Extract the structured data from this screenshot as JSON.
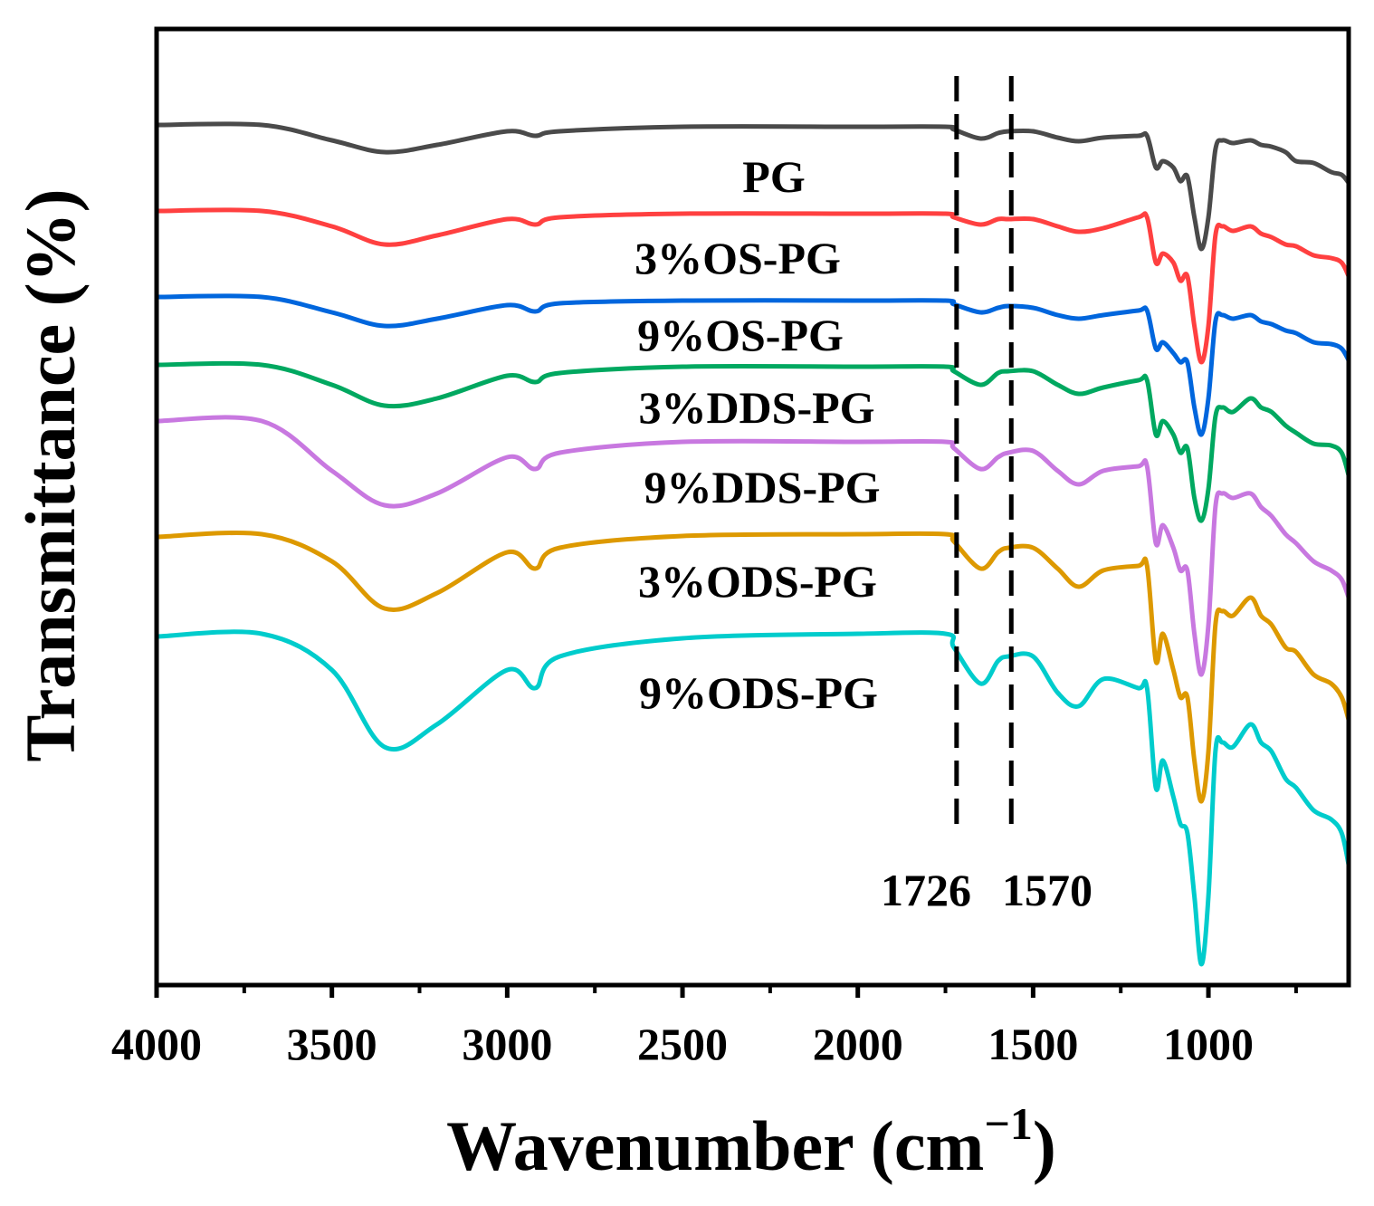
{
  "chart_data": {
    "type": "line",
    "title": "",
    "xlabel": "Wavenumber (cm",
    "xlabel_sup": "−1",
    "xlabel_close": ")",
    "ylabel": "Transmittance (%)",
    "xlim": [
      4000,
      600
    ],
    "ylim": [
      0,
      105.6
    ],
    "grid": false,
    "x_ticks": [
      4000,
      3500,
      3000,
      2500,
      2000,
      1500,
      1000
    ],
    "x_tick_labels": [
      "4000",
      "3500",
      "3000",
      "2500",
      "2000",
      "1500",
      "1000"
    ],
    "x_minor_ticks": [
      3750,
      3250,
      2750,
      2250,
      1750,
      1250,
      750
    ],
    "reference_lines": [
      {
        "x": 1726,
        "label": "1726"
      },
      {
        "x": 1570,
        "label": "1570"
      }
    ],
    "x": [
      4000,
      3700,
      3500,
      3350,
      3200,
      3000,
      2920,
      2850,
      2500,
      2000,
      1750,
      1726,
      1650,
      1600,
      1570,
      1500,
      1430,
      1370,
      1300,
      1200,
      1175,
      1150,
      1130,
      1100,
      1080,
      1060,
      1040,
      1020,
      1000,
      980,
      960,
      930,
      880,
      850,
      820,
      780,
      750,
      700,
      650,
      620,
      600
    ],
    "series": [
      {
        "name": "PG",
        "color": "#4a4a4a",
        "values": [
          95.0,
          95.0,
          93.3,
          92.0,
          92.8,
          94.3,
          93.8,
          94.3,
          94.8,
          94.8,
          94.8,
          94.5,
          93.5,
          94.1,
          94.3,
          94.3,
          93.6,
          93.2,
          93.6,
          93.8,
          93.8,
          90.3,
          91.0,
          90.3,
          88.8,
          89.3,
          84.8,
          81.3,
          84.8,
          92.3,
          93.3,
          93.0,
          93.3,
          92.8,
          92.6,
          92.0,
          91.0,
          90.8,
          89.8,
          89.5,
          88.6
        ]
      },
      {
        "name": "3%OS-PG",
        "color": "#ff4040",
        "values": [
          85.5,
          85.5,
          83.8,
          81.8,
          82.8,
          84.6,
          84.0,
          84.8,
          85.2,
          85.2,
          85.2,
          84.8,
          84.0,
          84.6,
          84.6,
          84.6,
          83.8,
          83.2,
          83.6,
          84.8,
          84.8,
          79.8,
          80.8,
          79.8,
          77.8,
          78.3,
          72.8,
          68.8,
          72.8,
          82.8,
          83.8,
          83.3,
          83.8,
          83.0,
          82.6,
          81.8,
          81.6,
          80.6,
          80.3,
          79.8,
          78.3
        ]
      },
      {
        "name": "9%OS-PG",
        "color": "#0066dd",
        "values": [
          76.0,
          76.0,
          74.3,
          72.8,
          73.6,
          75.1,
          74.4,
          75.3,
          75.6,
          75.6,
          75.6,
          75.2,
          74.3,
          74.8,
          75.0,
          74.8,
          74.0,
          73.6,
          74.0,
          74.5,
          74.5,
          70.3,
          71.0,
          69.8,
          68.8,
          68.8,
          63.8,
          60.8,
          64.8,
          73.3,
          74.0,
          73.6,
          74.0,
          73.3,
          73.0,
          72.3,
          72.0,
          71.0,
          70.8,
          70.3,
          69.0
        ]
      },
      {
        "name": "3%DDS-PG",
        "color": "#00a860",
        "values": [
          68.5,
          68.5,
          66.3,
          64.0,
          64.8,
          67.3,
          66.6,
          67.6,
          68.3,
          68.3,
          68.3,
          67.8,
          66.3,
          67.6,
          67.8,
          67.8,
          66.3,
          65.3,
          66.0,
          66.8,
          66.8,
          60.8,
          62.3,
          60.8,
          58.8,
          59.3,
          53.8,
          51.3,
          54.8,
          62.8,
          63.8,
          63.3,
          64.8,
          63.8,
          63.3,
          61.8,
          61.0,
          59.8,
          59.6,
          58.8,
          56.3
        ]
      },
      {
        "name": "9%DDS-PG",
        "color": "#c878e0",
        "values": [
          62.3,
          62.3,
          56.8,
          53.0,
          54.3,
          58.3,
          57.0,
          58.8,
          60.0,
          60.0,
          60.0,
          59.3,
          57.0,
          58.3,
          58.8,
          59.0,
          56.8,
          55.3,
          56.8,
          57.3,
          57.3,
          48.8,
          50.8,
          48.3,
          45.8,
          45.8,
          38.8,
          34.3,
          39.8,
          52.8,
          54.3,
          53.8,
          54.3,
          52.8,
          51.8,
          49.8,
          48.8,
          46.8,
          45.8,
          44.8,
          42.8
        ]
      },
      {
        "name": "3%ODS-PG",
        "color": "#dd9900",
        "values": [
          49.5,
          49.8,
          46.8,
          41.6,
          43.3,
          47.8,
          46.0,
          48.3,
          49.6,
          49.8,
          49.8,
          49.0,
          46.0,
          47.8,
          48.3,
          48.3,
          46.0,
          44.0,
          45.8,
          46.3,
          46.3,
          35.8,
          38.8,
          34.8,
          31.8,
          31.8,
          24.8,
          20.3,
          25.8,
          39.8,
          41.3,
          40.8,
          42.8,
          40.8,
          39.8,
          37.3,
          36.8,
          34.3,
          33.3,
          31.8,
          29.3
        ]
      },
      {
        "name": "9%ODS-PG",
        "color": "#00cccc",
        "values": [
          38.5,
          38.8,
          34.8,
          26.3,
          28.8,
          34.8,
          32.8,
          36.3,
          38.3,
          38.8,
          38.8,
          37.3,
          33.3,
          35.8,
          36.3,
          36.3,
          32.3,
          30.8,
          33.8,
          32.8,
          32.8,
          21.8,
          24.8,
          20.8,
          17.8,
          16.8,
          9.8,
          2.3,
          9.8,
          25.8,
          26.8,
          26.3,
          28.8,
          26.8,
          25.8,
          22.8,
          21.8,
          19.3,
          18.3,
          16.8,
          13.3
        ]
      }
    ]
  }
}
